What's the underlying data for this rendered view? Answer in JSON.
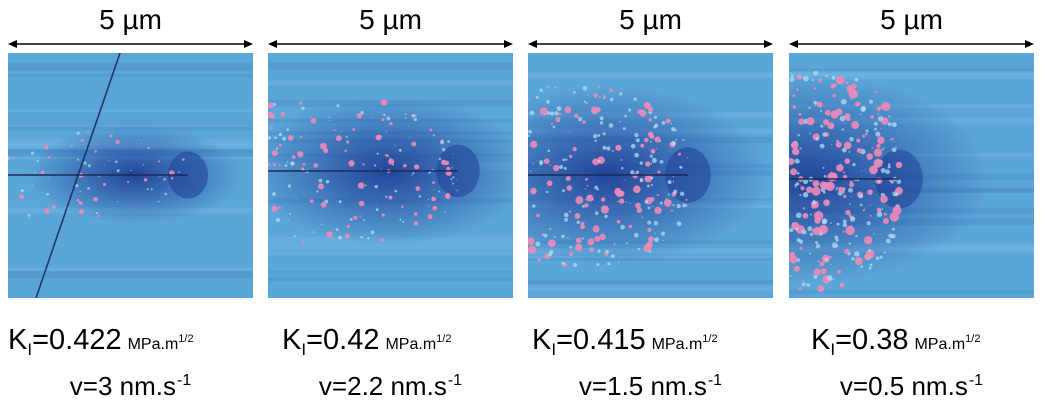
{
  "panels": [
    {
      "scale_label": "5 µm",
      "k_symbol": "K",
      "k_sub": "I",
      "k_value": "=0.422",
      "k_unit": "MPa.m",
      "k_unit_exp": "1/2",
      "v_text": "v=3 nm.s",
      "v_exp": "-1",
      "dot_count": 70,
      "dot_spread": 0.35,
      "dot_size": 2.2
    },
    {
      "scale_label": "5 µm",
      "k_symbol": "K",
      "k_sub": "I",
      "k_value": "=0.42",
      "k_unit": "MPa.m",
      "k_unit_exp": "1/2",
      "v_text": "v=2.2 nm.s",
      "v_exp": "-1",
      "dot_count": 170,
      "dot_spread": 0.62,
      "dot_size": 2.8
    },
    {
      "scale_label": "5 µm",
      "k_symbol": "K",
      "k_sub": "I",
      "k_value": "=0.415",
      "k_unit": "MPa.m",
      "k_unit_exp": "1/2",
      "v_text": "v=1.5 nm.s",
      "v_exp": "-1",
      "dot_count": 260,
      "dot_spread": 0.78,
      "dot_size": 3.6
    },
    {
      "scale_label": "5 µm",
      "k_symbol": "K",
      "k_sub": "I",
      "k_value": "=0.38",
      "k_unit": "MPa.m",
      "k_unit_exp": "1/2",
      "v_text": "v=0.5 nm.s",
      "v_exp": "-1",
      "dot_count": 300,
      "dot_spread": 0.95,
      "dot_size": 4.2
    }
  ],
  "colors": {
    "background": "#5ba6d8",
    "dark_zone": "#1f3f96",
    "droplet": "#f08ab8",
    "crack": "#1c2a5a"
  }
}
